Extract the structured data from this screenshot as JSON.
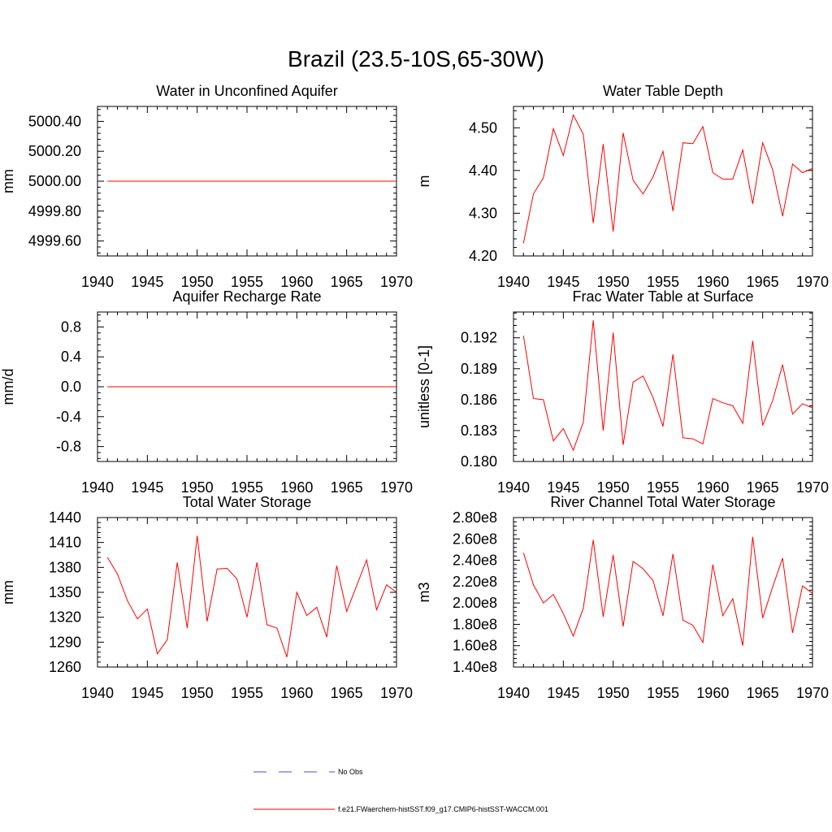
{
  "figure": {
    "title": "Brazil (23.5-10S,65-30W)",
    "line_color": "#ff0000",
    "obs_color": "#4a4ad0"
  },
  "legend": {
    "items": [
      {
        "label": "No Obs",
        "style": "dashed",
        "color": "#4a4ad0"
      },
      {
        "label": "f.e21.FWaerchem-histSST.f09_g17.CMIP6-histSST-WACCM.001",
        "style": "solid",
        "color": "#ff0000"
      }
    ]
  },
  "chart_data": [
    {
      "type": "line",
      "title": "Water in Unconfined Aquifer",
      "ylabel": "mm",
      "xlim": [
        1940,
        1970
      ],
      "ylim": [
        4999.5,
        5000.5
      ],
      "xticks": [
        1940,
        1945,
        1950,
        1955,
        1960,
        1965,
        1970
      ],
      "yticks": [
        4999.6,
        4999.8,
        5000.0,
        5000.2,
        5000.4
      ],
      "ytick_labels": [
        "4999.60",
        "4999.80",
        "5000.00",
        "5000.20",
        "5000.40"
      ],
      "x": [
        1941,
        1970
      ],
      "y": [
        5000.0,
        5000.0
      ]
    },
    {
      "type": "line",
      "title": "Water Table Depth",
      "ylabel": "m",
      "xlim": [
        1940,
        1970
      ],
      "ylim": [
        4.2,
        4.55
      ],
      "xticks": [
        1940,
        1945,
        1950,
        1955,
        1960,
        1965,
        1970
      ],
      "yticks": [
        4.2,
        4.3,
        4.4,
        4.5
      ],
      "ytick_labels": [
        "4.20",
        "4.30",
        "4.40",
        "4.50"
      ],
      "x": [
        1941,
        1942,
        1943,
        1944,
        1945,
        1946,
        1947,
        1948,
        1949,
        1950,
        1951,
        1952,
        1953,
        1954,
        1955,
        1956,
        1957,
        1958,
        1959,
        1960,
        1961,
        1962,
        1963,
        1964,
        1965,
        1966,
        1967,
        1968,
        1969,
        1970
      ],
      "y": [
        4.23,
        4.345,
        4.383,
        4.498,
        4.435,
        4.53,
        4.485,
        4.277,
        4.462,
        4.257,
        4.488,
        4.377,
        4.345,
        4.385,
        4.445,
        4.305,
        4.465,
        4.463,
        4.503,
        4.395,
        4.38,
        4.38,
        4.448,
        4.322,
        4.465,
        4.402,
        4.293,
        4.415,
        4.395,
        4.405
      ]
    },
    {
      "type": "line",
      "title": "Aquifer Recharge Rate",
      "ylabel": "mm/d",
      "xlim": [
        1940,
        1970
      ],
      "ylim": [
        -1.0,
        1.0
      ],
      "xticks": [
        1940,
        1945,
        1950,
        1955,
        1960,
        1965,
        1970
      ],
      "yticks": [
        -0.8,
        -0.4,
        0.0,
        0.4,
        0.8
      ],
      "ytick_labels": [
        "-0.8",
        "-0.4",
        "0.0",
        "0.4",
        "0.8"
      ],
      "x": [
        1941,
        1970
      ],
      "y": [
        0.0,
        0.0
      ]
    },
    {
      "type": "line",
      "title": "Frac Water Table at Surface",
      "ylabel": "unitless [0-1]",
      "xlim": [
        1940,
        1970
      ],
      "ylim": [
        0.18,
        0.1945
      ],
      "xticks": [
        1940,
        1945,
        1950,
        1955,
        1960,
        1965,
        1970
      ],
      "yticks": [
        0.18,
        0.183,
        0.186,
        0.189,
        0.192
      ],
      "ytick_labels": [
        "0.180",
        "0.183",
        "0.186",
        "0.189",
        "0.192"
      ],
      "x": [
        1941,
        1942,
        1943,
        1944,
        1945,
        1946,
        1947,
        1948,
        1949,
        1950,
        1951,
        1952,
        1953,
        1954,
        1955,
        1956,
        1957,
        1958,
        1959,
        1960,
        1961,
        1962,
        1963,
        1964,
        1965,
        1966,
        1967,
        1968,
        1969,
        1970
      ],
      "y": [
        0.1922,
        0.1861,
        0.186,
        0.182,
        0.1832,
        0.1811,
        0.1838,
        0.1937,
        0.183,
        0.1925,
        0.1816,
        0.1877,
        0.1883,
        0.1862,
        0.1834,
        0.1904,
        0.1823,
        0.1822,
        0.1817,
        0.1861,
        0.1857,
        0.1854,
        0.1837,
        0.1917,
        0.1835,
        0.1859,
        0.1894,
        0.1846,
        0.1856,
        0.1852
      ]
    },
    {
      "type": "line",
      "title": "Total Water Storage",
      "ylabel": "mm",
      "xlim": [
        1940,
        1970
      ],
      "ylim": [
        1260,
        1440
      ],
      "xticks": [
        1940,
        1945,
        1950,
        1955,
        1960,
        1965,
        1970
      ],
      "yticks": [
        1260,
        1290,
        1320,
        1350,
        1380,
        1410,
        1440
      ],
      "ytick_labels": [
        "1260",
        "1290",
        "1320",
        "1350",
        "1380",
        "1410",
        "1440"
      ],
      "x": [
        1941,
        1942,
        1943,
        1944,
        1945,
        1946,
        1947,
        1948,
        1949,
        1950,
        1951,
        1952,
        1953,
        1954,
        1955,
        1956,
        1957,
        1958,
        1959,
        1960,
        1961,
        1962,
        1963,
        1964,
        1965,
        1966,
        1967,
        1968,
        1969,
        1970
      ],
      "y": [
        1392,
        1372,
        1340,
        1318,
        1330,
        1276,
        1293,
        1386,
        1307,
        1418,
        1315,
        1378,
        1379,
        1366,
        1320,
        1386,
        1311,
        1307,
        1272,
        1350,
        1322,
        1332,
        1296,
        1382,
        1327,
        1358,
        1389,
        1329,
        1359,
        1350
      ]
    },
    {
      "type": "line",
      "title": "River Channel Total Water Storage",
      "ylabel": "m3",
      "xlim": [
        1940,
        1970
      ],
      "ylim": [
        140000000,
        280000000
      ],
      "xticks": [
        1940,
        1945,
        1950,
        1955,
        1960,
        1965,
        1970
      ],
      "yticks": [
        140000000,
        160000000,
        180000000,
        200000000,
        220000000,
        240000000,
        260000000,
        280000000
      ],
      "ytick_labels": [
        "1.40e8",
        "1.60e8",
        "1.80e8",
        "2.00e8",
        "2.20e8",
        "2.40e8",
        "2.60e8",
        "2.80e8"
      ],
      "x": [
        1941,
        1942,
        1943,
        1944,
        1945,
        1946,
        1947,
        1948,
        1949,
        1950,
        1951,
        1952,
        1953,
        1954,
        1955,
        1956,
        1957,
        1958,
        1959,
        1960,
        1961,
        1962,
        1963,
        1964,
        1965,
        1966,
        1967,
        1968,
        1969,
        1970
      ],
      "y": [
        247000000,
        217000000,
        200000000,
        208000000,
        190000000,
        169000000,
        195000000,
        259000000,
        187000000,
        245000000,
        178000000,
        239000000,
        232000000,
        221000000,
        188000000,
        246000000,
        184000000,
        179000000,
        163000000,
        236000000,
        188000000,
        204000000,
        160000000,
        262000000,
        186000000,
        215000000,
        242000000,
        172000000,
        216000000,
        209000000
      ]
    }
  ]
}
